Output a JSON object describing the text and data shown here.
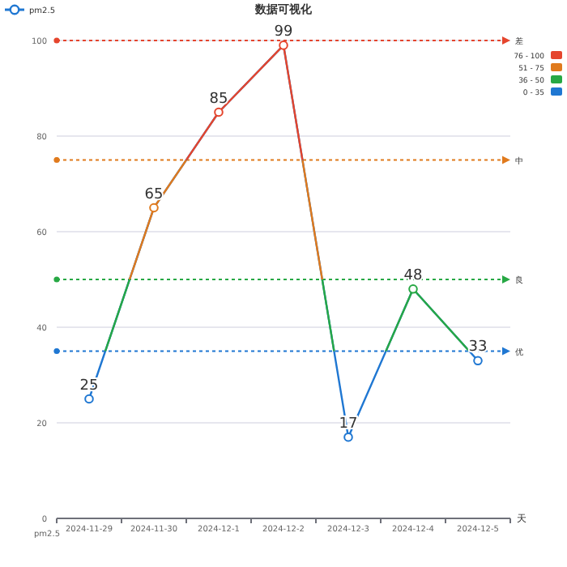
{
  "chart_data": {
    "type": "line",
    "title": "数据可视化",
    "xlabel": "天",
    "ylabel": "pm2.5",
    "categories": [
      "2024-11-29",
      "2024-11-30",
      "2024-12-1",
      "2024-12-2",
      "2024-12-3",
      "2024-12-4",
      "2024-12-5"
    ],
    "series": [
      {
        "name": "pm2.5",
        "color": "#1f77d2",
        "values": [
          25,
          65,
          85,
          99,
          17,
          48,
          33
        ]
      }
    ],
    "ylim": [
      0,
      100
    ],
    "yticks": [
      0,
      20,
      40,
      60,
      80,
      100
    ],
    "grid": "y",
    "legend": "top left",
    "marker": "circle",
    "data_labels": true,
    "ref_lines": [
      {
        "axis": "y",
        "value": 100,
        "label": "差",
        "color": "#e5452d",
        "line_style": "dotted"
      },
      {
        "axis": "y",
        "value": 75,
        "label": "中",
        "color": "#e07a1d",
        "line_style": "dotted"
      },
      {
        "axis": "y",
        "value": 50,
        "label": "良",
        "color": "#27a844",
        "line_style": "dotted"
      },
      {
        "axis": "y",
        "value": 35,
        "label": "优",
        "color": "#1f77d2",
        "line_style": "dotted"
      }
    ],
    "annotations": [
      "76 - 100",
      "51 - 75",
      "36 - 50",
      "0 - 35"
    ]
  }
}
